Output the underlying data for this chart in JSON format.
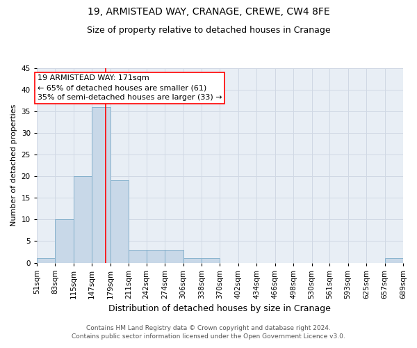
{
  "title1": "19, ARMISTEAD WAY, CRANAGE, CREWE, CW4 8FE",
  "title2": "Size of property relative to detached houses in Cranage",
  "xlabel": "Distribution of detached houses by size in Cranage",
  "ylabel": "Number of detached properties",
  "footnote1": "Contains HM Land Registry data © Crown copyright and database right 2024.",
  "footnote2": "Contains public sector information licensed under the Open Government Licence v3.0.",
  "bar_edges": [
    51,
    83,
    115,
    147,
    179,
    211,
    242,
    274,
    306,
    338,
    370,
    402,
    434,
    466,
    498,
    530,
    561,
    593,
    625,
    657,
    689
  ],
  "bar_heights": [
    1,
    10,
    20,
    36,
    19,
    3,
    3,
    3,
    1,
    1,
    0,
    0,
    0,
    0,
    0,
    0,
    0,
    0,
    0,
    1
  ],
  "bar_color": "#c8d8e8",
  "bar_edge_color": "#7aaac8",
  "vline_x": 171,
  "vline_color": "red",
  "annotation_line1": "19 ARMISTEAD WAY: 171sqm",
  "annotation_line2": "← 65% of detached houses are smaller (61)",
  "annotation_line3": "35% of semi-detached houses are larger (33) →",
  "annotation_box_color": "red",
  "annotation_box_facecolor": "white",
  "ylim": [
    0,
    45
  ],
  "yticks": [
    0,
    5,
    10,
    15,
    20,
    25,
    30,
    35,
    40,
    45
  ],
  "grid_color": "#d0d8e4",
  "bg_color": "#e8eef5",
  "title1_fontsize": 10,
  "title2_fontsize": 9,
  "xlabel_fontsize": 9,
  "ylabel_fontsize": 8,
  "tick_fontsize": 7.5,
  "annotation_fontsize": 8,
  "footnote_fontsize": 6.5
}
